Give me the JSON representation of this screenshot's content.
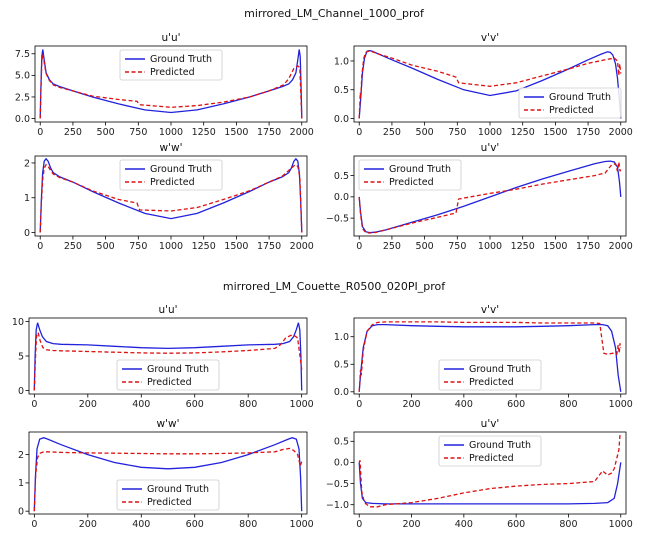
{
  "figure_titles": [
    "mirrored_LM_Channel_1000_prof",
    "mirrored_LM_Couette_R0500_020PI_prof"
  ],
  "legend": {
    "truth": "Ground Truth",
    "pred": "Predicted"
  },
  "colors": {
    "truth": "#2222dd",
    "pred": "#dd1111"
  },
  "chart_data": [
    {
      "type": "line",
      "title": "u'u'",
      "xlim": [
        -40,
        2040
      ],
      "ylim": [
        -0.4,
        8.4
      ],
      "xticks": [
        0,
        250,
        500,
        750,
        1000,
        1250,
        1500,
        1750,
        2000
      ],
      "yticks": [
        0.0,
        2.5,
        5.0,
        7.5
      ],
      "legend_position": "top-center",
      "series": [
        {
          "name": "Ground Truth",
          "x": [
            0,
            6,
            12,
            20,
            30,
            45,
            70,
            100,
            150,
            250,
            400,
            600,
            800,
            1000,
            1200,
            1400,
            1600,
            1750,
            1850,
            1900,
            1930,
            1955,
            1970,
            1980,
            1988,
            1994,
            2000
          ],
          "y": [
            0,
            4.0,
            7.2,
            8.0,
            6.8,
            5.3,
            4.5,
            4.0,
            3.7,
            3.2,
            2.5,
            1.7,
            1.0,
            0.7,
            1.0,
            1.7,
            2.5,
            3.2,
            3.7,
            4.0,
            4.5,
            5.3,
            6.8,
            8.0,
            7.2,
            4.0,
            0
          ]
        },
        {
          "name": "Predicted",
          "x": [
            0,
            6,
            12,
            20,
            30,
            45,
            70,
            100,
            150,
            250,
            400,
            600,
            740,
            760,
            1000,
            1200,
            1400,
            1600,
            1750,
            1860,
            1900,
            1940,
            1970,
            1985,
            1992,
            2000
          ],
          "y": [
            0,
            3.5,
            6.6,
            7.5,
            6.5,
            5.2,
            4.4,
            3.9,
            3.6,
            3.2,
            2.6,
            2.2,
            2.0,
            1.6,
            1.3,
            1.5,
            1.9,
            2.5,
            3.2,
            3.9,
            4.6,
            5.8,
            6.1,
            5.9,
            3.2,
            0
          ]
        }
      ]
    },
    {
      "type": "line",
      "title": "v'v'",
      "xlim": [
        -40,
        2040
      ],
      "ylim": [
        -0.06,
        1.26
      ],
      "xticks": [
        0,
        250,
        500,
        750,
        1000,
        1250,
        1500,
        1750,
        2000
      ],
      "yticks": [
        0.0,
        0.5,
        1.0
      ],
      "legend_position": "lower-right",
      "series": [
        {
          "name": "Ground Truth",
          "x": [
            0,
            10,
            25,
            40,
            60,
            80,
            100,
            150,
            250,
            400,
            600,
            800,
            1000,
            1200,
            1400,
            1600,
            1750,
            1850,
            1900,
            1920,
            1940,
            1960,
            1975,
            1990,
            2000
          ],
          "y": [
            0,
            0.3,
            0.8,
            1.05,
            1.17,
            1.18,
            1.17,
            1.12,
            1.02,
            0.88,
            0.68,
            0.5,
            0.4,
            0.48,
            0.66,
            0.86,
            1.02,
            1.12,
            1.16,
            1.15,
            1.1,
            0.95,
            0.7,
            0.3,
            0
          ]
        },
        {
          "name": "Predicted",
          "x": [
            0,
            8,
            12,
            20,
            35,
            50,
            70,
            100,
            150,
            250,
            400,
            600,
            740,
            760,
            1000,
            1200,
            1400,
            1600,
            1750,
            1880,
            1950,
            1975,
            1985,
            1992,
            2000
          ],
          "y": [
            0,
            0.45,
            0.35,
            0.75,
            1.05,
            1.15,
            1.17,
            1.16,
            1.12,
            1.05,
            0.93,
            0.82,
            0.72,
            0.62,
            0.56,
            0.62,
            0.74,
            0.86,
            0.96,
            1.02,
            1.05,
            1.0,
            0.75,
            0.95,
            0.78
          ]
        }
      ]
    },
    {
      "type": "line",
      "title": "w'w'",
      "xlim": [
        -40,
        2040
      ],
      "ylim": [
        -0.1,
        2.2
      ],
      "xticks": [
        0,
        250,
        500,
        750,
        1000,
        1250,
        1500,
        1750,
        2000
      ],
      "yticks": [
        0,
        1,
        2
      ],
      "legend_position": "top-center",
      "series": [
        {
          "name": "Ground Truth",
          "x": [
            0,
            8,
            18,
            30,
            45,
            60,
            80,
            100,
            150,
            250,
            400,
            600,
            800,
            1000,
            1200,
            1400,
            1600,
            1750,
            1850,
            1900,
            1920,
            1940,
            1955,
            1970,
            1982,
            1992,
            2000
          ],
          "y": [
            0,
            0.9,
            1.7,
            2.05,
            2.12,
            2.05,
            1.85,
            1.72,
            1.6,
            1.45,
            1.18,
            0.85,
            0.55,
            0.4,
            0.55,
            0.85,
            1.18,
            1.45,
            1.6,
            1.72,
            1.85,
            2.05,
            2.12,
            2.05,
            1.7,
            0.9,
            0
          ]
        },
        {
          "name": "Predicted",
          "x": [
            0,
            8,
            18,
            30,
            45,
            60,
            80,
            100,
            150,
            250,
            400,
            600,
            740,
            760,
            1000,
            1200,
            1400,
            1600,
            1750,
            1850,
            1920,
            1950,
            1970,
            1985,
            1992,
            2000
          ],
          "y": [
            0,
            0.8,
            1.5,
            1.85,
            1.95,
            1.9,
            1.78,
            1.68,
            1.58,
            1.45,
            1.2,
            0.95,
            0.85,
            0.65,
            0.62,
            0.72,
            0.95,
            1.2,
            1.45,
            1.62,
            1.85,
            1.95,
            1.9,
            1.6,
            0.9,
            0
          ]
        }
      ]
    },
    {
      "type": "line",
      "title": "u'v'",
      "xlim": [
        -40,
        2040
      ],
      "ylim": [
        -0.92,
        0.96
      ],
      "xticks": [
        0,
        250,
        500,
        750,
        1000,
        1250,
        1500,
        1750,
        2000
      ],
      "yticks": [
        -0.5,
        0.0,
        0.5
      ],
      "legend_position": "top-left",
      "series": [
        {
          "name": "Ground Truth",
          "x": [
            0,
            10,
            25,
            50,
            80,
            120,
            200,
            400,
            600,
            800,
            1000,
            1200,
            1400,
            1600,
            1800,
            1880,
            1920,
            1950,
            1975,
            1990,
            2000
          ],
          "y": [
            0,
            -0.35,
            -0.7,
            -0.82,
            -0.84,
            -0.83,
            -0.78,
            -0.6,
            -0.42,
            -0.22,
            0,
            0.22,
            0.42,
            0.6,
            0.78,
            0.83,
            0.84,
            0.82,
            0.7,
            0.35,
            0
          ]
        },
        {
          "name": "Predicted",
          "x": [
            0,
            10,
            25,
            50,
            80,
            120,
            200,
            400,
            600,
            740,
            760,
            1000,
            1200,
            1400,
            1600,
            1800,
            1880,
            1930,
            1960,
            1975,
            1985,
            1995,
            2000
          ],
          "y": [
            0,
            -0.4,
            -0.75,
            -0.84,
            -0.85,
            -0.84,
            -0.78,
            -0.62,
            -0.48,
            -0.38,
            -0.05,
            0.08,
            0.18,
            0.3,
            0.4,
            0.5,
            0.56,
            0.75,
            0.78,
            0.6,
            0.82,
            0.6,
            0.65
          ]
        }
      ]
    },
    {
      "type": "line",
      "title": "u'u'",
      "xlim": [
        -20,
        1020
      ],
      "ylim": [
        -0.5,
        10.5
      ],
      "xticks": [
        0,
        200,
        400,
        600,
        800,
        1000
      ],
      "yticks": [
        0,
        5,
        10
      ],
      "legend_position": "lower-center",
      "series": [
        {
          "name": "Ground Truth",
          "x": [
            0,
            3,
            7,
            12,
            20,
            30,
            45,
            70,
            100,
            200,
            300,
            400,
            500,
            600,
            700,
            800,
            900,
            930,
            955,
            970,
            980,
            988,
            993,
            997,
            1000
          ],
          "y": [
            0,
            5.0,
            8.8,
            9.8,
            8.8,
            7.8,
            7.1,
            6.8,
            6.7,
            6.6,
            6.4,
            6.2,
            6.1,
            6.2,
            6.4,
            6.6,
            6.7,
            6.8,
            7.1,
            7.8,
            8.8,
            9.8,
            8.8,
            5.0,
            0
          ]
        },
        {
          "name": "Predicted",
          "x": [
            0,
            4,
            8,
            14,
            22,
            32,
            45,
            70,
            100,
            200,
            300,
            400,
            500,
            600,
            700,
            800,
            900,
            920,
            940,
            960,
            975,
            985,
            992,
            997,
            1000
          ],
          "y": [
            0,
            4.5,
            7.8,
            8.4,
            7.2,
            6.2,
            5.9,
            5.8,
            5.75,
            5.65,
            5.55,
            5.45,
            5.4,
            5.45,
            5.6,
            5.8,
            6.1,
            6.6,
            7.6,
            8.0,
            7.9,
            7.6,
            5.5,
            4.0,
            3.0
          ]
        }
      ]
    },
    {
      "type": "line",
      "title": "v'v'",
      "xlim": [
        -20,
        1020
      ],
      "ylim": [
        -0.04,
        1.34
      ],
      "xticks": [
        0,
        200,
        400,
        600,
        800,
        1000
      ],
      "yticks": [
        0.0,
        0.5,
        1.0
      ],
      "legend_position": "lower-center",
      "series": [
        {
          "name": "Ground Truth",
          "x": [
            0,
            5,
            15,
            30,
            50,
            70,
            100,
            200,
            300,
            400,
            500,
            600,
            700,
            800,
            900,
            930,
            950,
            965,
            980,
            990,
            1000
          ],
          "y": [
            0,
            0.3,
            0.8,
            1.1,
            1.2,
            1.22,
            1.22,
            1.2,
            1.19,
            1.18,
            1.18,
            1.18,
            1.19,
            1.2,
            1.22,
            1.22,
            1.2,
            1.1,
            0.8,
            0.3,
            0
          ]
        },
        {
          "name": "Predicted",
          "x": [
            0,
            5,
            8,
            15,
            30,
            50,
            70,
            100,
            200,
            300,
            400,
            500,
            600,
            700,
            800,
            900,
            920,
            935,
            950,
            970,
            985,
            990,
            994,
            997,
            1000
          ],
          "y": [
            0,
            0.4,
            0.3,
            0.75,
            1.1,
            1.22,
            1.26,
            1.27,
            1.27,
            1.27,
            1.26,
            1.26,
            1.26,
            1.25,
            1.25,
            1.25,
            1.24,
            0.7,
            0.68,
            0.7,
            0.68,
            0.85,
            0.7,
            0.88,
            0.8
          ]
        }
      ]
    },
    {
      "type": "line",
      "title": "w'w'",
      "xlim": [
        -20,
        1020
      ],
      "ylim": [
        -0.1,
        2.8
      ],
      "xticks": [
        0,
        200,
        400,
        600,
        800,
        1000
      ],
      "yticks": [
        0,
        1,
        2
      ],
      "legend_position": "lower-center",
      "series": [
        {
          "name": "Ground Truth",
          "x": [
            0,
            4,
            10,
            20,
            35,
            50,
            100,
            200,
            300,
            400,
            500,
            600,
            700,
            800,
            900,
            950,
            965,
            980,
            990,
            996,
            1000
          ],
          "y": [
            0,
            1.2,
            2.2,
            2.55,
            2.6,
            2.55,
            2.35,
            2.0,
            1.72,
            1.55,
            1.5,
            1.55,
            1.72,
            2.0,
            2.35,
            2.55,
            2.6,
            2.55,
            2.2,
            1.2,
            0
          ]
        },
        {
          "name": "Predicted",
          "x": [
            0,
            5,
            12,
            22,
            35,
            50,
            100,
            200,
            300,
            400,
            500,
            600,
            700,
            800,
            900,
            930,
            955,
            970,
            985,
            990,
            995,
            1000
          ],
          "y": [
            0,
            1.3,
            1.9,
            2.05,
            2.1,
            2.1,
            2.08,
            2.06,
            2.05,
            2.04,
            2.03,
            2.03,
            2.04,
            2.06,
            2.1,
            2.18,
            2.22,
            2.15,
            2.0,
            1.8,
            1.6,
            1.75
          ]
        }
      ]
    },
    {
      "type": "line",
      "title": "u'v'",
      "xlim": [
        -20,
        1020
      ],
      "ylim": [
        -1.22,
        0.72
      ],
      "xticks": [
        0,
        200,
        400,
        600,
        800,
        1000
      ],
      "yticks": [
        -1.0,
        -0.5,
        0.0,
        0.5
      ],
      "legend_position": "top-center",
      "series": [
        {
          "name": "Ground Truth",
          "x": [
            0,
            5,
            12,
            25,
            50,
            100,
            200,
            400,
            600,
            800,
            900,
            950,
            975,
            988,
            995,
            1000
          ],
          "y": [
            0,
            -0.5,
            -0.85,
            -0.95,
            -0.97,
            -0.98,
            -0.98,
            -0.98,
            -0.98,
            -0.98,
            -0.97,
            -0.95,
            -0.85,
            -0.5,
            -0.2,
            0
          ]
        },
        {
          "name": "Predicted",
          "x": [
            0,
            3,
            6,
            10,
            20,
            40,
            70,
            100,
            200,
            300,
            400,
            500,
            600,
            700,
            800,
            900,
            930,
            950,
            965,
            975,
            985,
            993,
            997,
            1000
          ],
          "y": [
            0,
            0.05,
            -0.3,
            -0.7,
            -0.95,
            -1.05,
            -1.05,
            -1.0,
            -0.95,
            -0.85,
            -0.72,
            -0.62,
            -0.56,
            -0.52,
            -0.5,
            -0.45,
            -0.2,
            -0.3,
            -0.25,
            -0.15,
            0.1,
            0.3,
            0.65,
            0.6
          ]
        }
      ]
    }
  ]
}
